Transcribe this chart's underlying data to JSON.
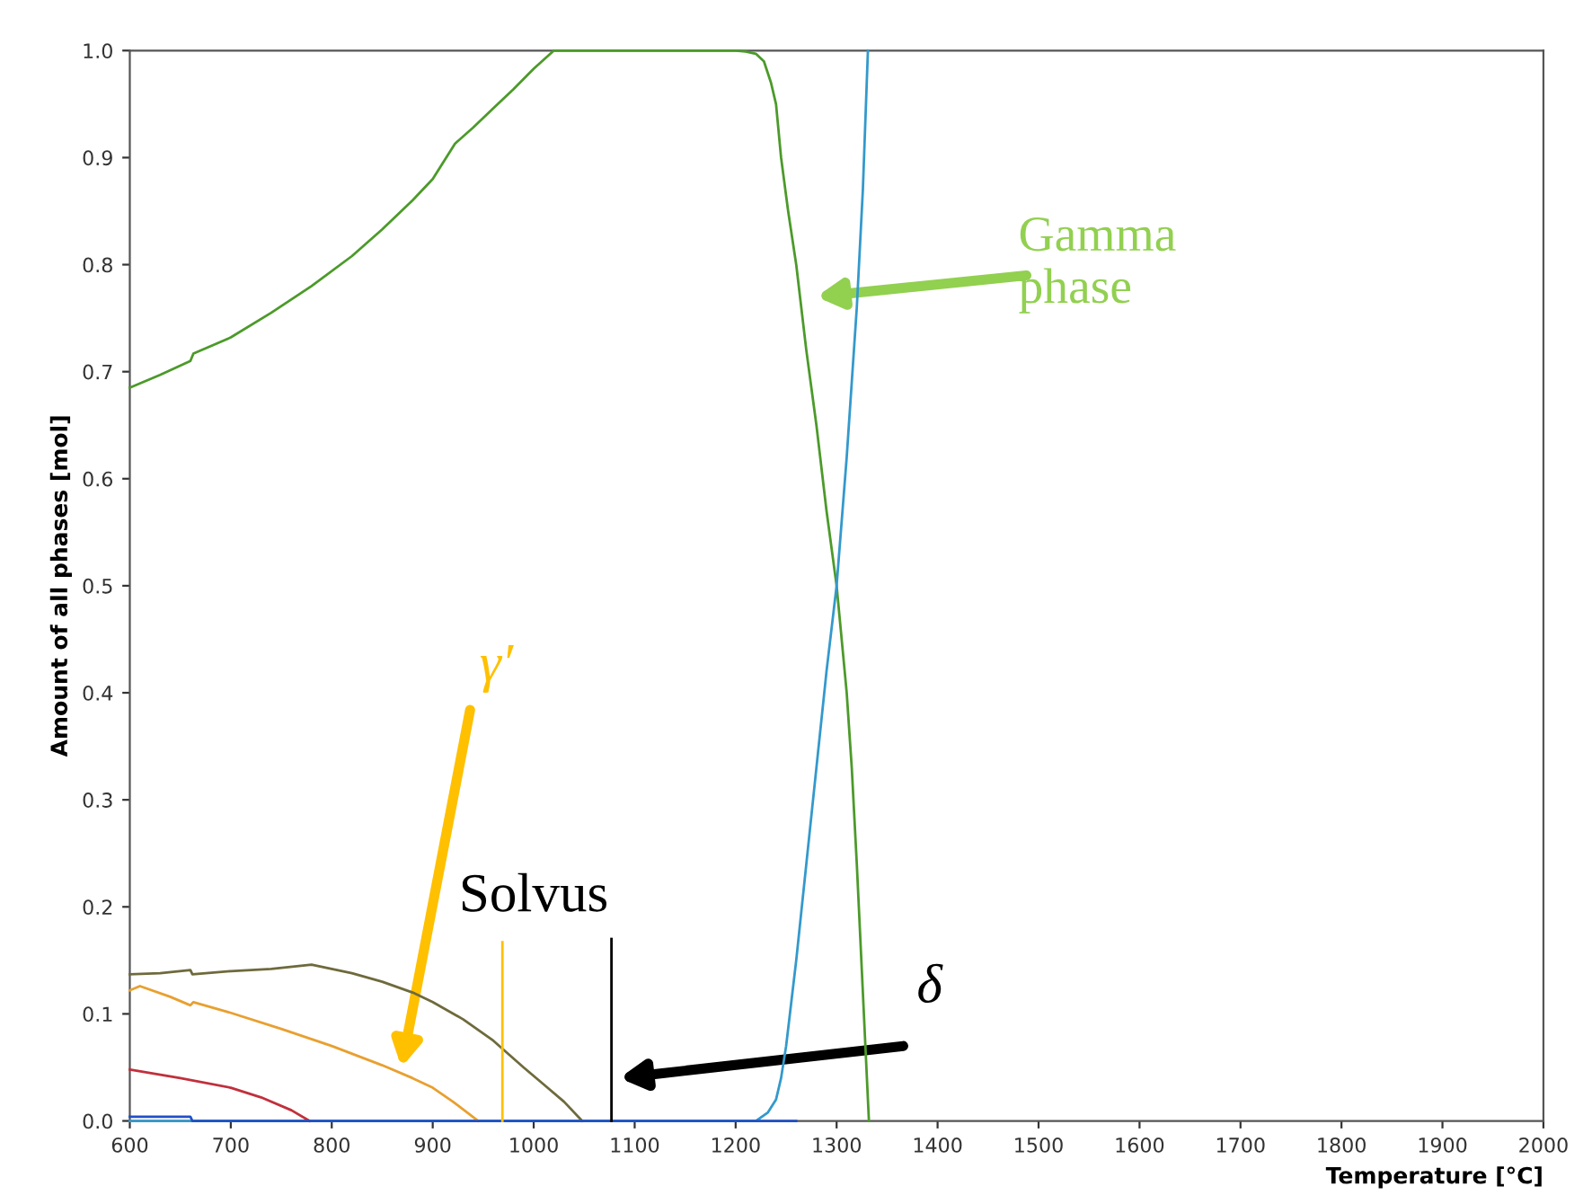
{
  "chart_data": {
    "type": "line",
    "xlabel": "Temperature [°C]",
    "ylabel": "Amount of all phases [mol]",
    "xlim": [
      600,
      2000
    ],
    "ylim": [
      0,
      1
    ],
    "xticks": [
      600,
      700,
      800,
      900,
      1000,
      1100,
      1200,
      1300,
      1400,
      1500,
      1600,
      1700,
      1800,
      1900,
      2000
    ],
    "yticks": [
      {
        "value": 0,
        "label": "0.0"
      },
      0.1,
      0.2,
      0.3,
      0.4,
      0.5,
      0.6,
      0.7,
      0.8,
      0.9,
      {
        "value": 1,
        "label": "1.0"
      }
    ],
    "grid": false,
    "marker": "none",
    "line_style": "solid",
    "series": [
      {
        "color": "#4c9a2a",
        "x": [
          600,
          630,
          660,
          663,
          700,
          740,
          780,
          820,
          850,
          880,
          900,
          922,
          940,
          960,
          980,
          1000,
          1020,
          1051,
          1100,
          1150,
          1200,
          1210,
          1220,
          1228,
          1235,
          1240,
          1245,
          1252,
          1260,
          1270,
          1280,
          1290,
          1300,
          1310,
          1315,
          1320,
          1325,
          1332
        ],
        "values": [
          0.685,
          0.697,
          0.71,
          0.717,
          0.732,
          0.755,
          0.78,
          0.808,
          0.833,
          0.86,
          0.88,
          0.913,
          0.928,
          0.946,
          0.964,
          0.983,
          1.0,
          1.0,
          1.0,
          1.0,
          1.0,
          0.999,
          0.997,
          0.99,
          0.97,
          0.95,
          0.9,
          0.85,
          0.8,
          0.72,
          0.65,
          0.57,
          0.5,
          0.4,
          0.33,
          0.24,
          0.14,
          0.0
        ]
      },
      {
        "color": "#3399cc",
        "x": [
          600,
          1220,
          1232,
          1240,
          1245,
          1250,
          1255,
          1260,
          1270,
          1280,
          1290,
          1300,
          1310,
          1320,
          1326,
          1331
        ],
        "values": [
          0,
          0,
          0.008,
          0.02,
          0.04,
          0.07,
          0.11,
          0.15,
          0.24,
          0.33,
          0.42,
          0.5,
          0.62,
          0.76,
          0.87,
          1.0
        ]
      },
      {
        "color": "#6e6a3c",
        "x": [
          600,
          630,
          660,
          662,
          700,
          740,
          780,
          820,
          850,
          880,
          900,
          930,
          960,
          990,
          1010,
          1030,
          1048
        ],
        "values": [
          0.137,
          0.138,
          0.141,
          0.137,
          0.14,
          0.142,
          0.146,
          0.138,
          0.13,
          0.12,
          0.111,
          0.095,
          0.075,
          0.05,
          0.034,
          0.018,
          0.0
        ]
      },
      {
        "color": "#e8a030",
        "x": [
          600,
          610,
          640,
          660,
          663,
          700,
          750,
          800,
          850,
          880,
          900,
          920,
          945
        ],
        "values": [
          0.122,
          0.126,
          0.116,
          0.108,
          0.111,
          0.101,
          0.086,
          0.07,
          0.052,
          0.04,
          0.031,
          0.018,
          0.0
        ]
      },
      {
        "color": "#c0303c",
        "x": [
          600,
          650,
          700,
          730,
          760,
          778
        ],
        "values": [
          0.048,
          0.04,
          0.031,
          0.022,
          0.01,
          0.0
        ]
      },
      {
        "color": "#2050c8",
        "x": [
          600,
          660,
          662,
          700,
          1000,
          1260
        ],
        "values": [
          0.004,
          0.004,
          0.0,
          0.0,
          0.0,
          0.0
        ]
      },
      {
        "color": "#ffc000",
        "x": [
          969,
          969
        ],
        "values": [
          0,
          0.167
        ]
      },
      {
        "color": "#000000",
        "x": [
          1077,
          1077
        ],
        "values": [
          0,
          0.17
        ]
      }
    ],
    "annotations": [
      "Gamma phase",
      "γ′",
      "Solvus",
      "δ"
    ]
  }
}
